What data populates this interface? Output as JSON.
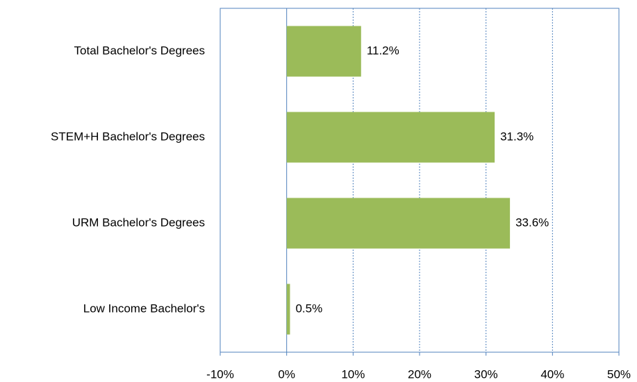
{
  "chart_data": {
    "type": "bar",
    "orientation": "horizontal",
    "categories": [
      "Total Bachelor's Degrees",
      "STEM+H Bachelor's Degrees",
      "URM Bachelor's Degrees",
      "Low Income Bachelor's"
    ],
    "values": [
      11.2,
      31.3,
      33.6,
      0.5
    ],
    "value_labels": [
      "11.2%",
      "31.3%",
      "33.6%",
      "0.5%"
    ],
    "color": "#9bbb59",
    "xlim": [
      -10,
      50
    ],
    "xticks": [
      {
        "value": -10,
        "label": "-10%"
      },
      {
        "value": 0,
        "label": "0%"
      },
      {
        "value": 10,
        "label": "10%"
      },
      {
        "value": 20,
        "label": "20%"
      },
      {
        "value": 30,
        "label": "30%"
      },
      {
        "value": 40,
        "label": "40%"
      },
      {
        "value": 50,
        "label": "50%"
      }
    ],
    "grid": true
  }
}
